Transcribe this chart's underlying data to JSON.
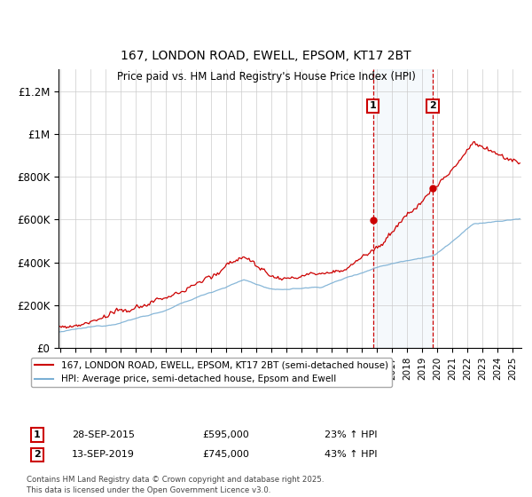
{
  "title": "167, LONDON ROAD, EWELL, EPSOM, KT17 2BT",
  "subtitle": "Price paid vs. HM Land Registry's House Price Index (HPI)",
  "legend_line1": "167, LONDON ROAD, EWELL, EPSOM, KT17 2BT (semi-detached house)",
  "legend_line2": "HPI: Average price, semi-detached house, Epsom and Ewell",
  "annotation1": {
    "label": "1",
    "date": "28-SEP-2015",
    "price": "£595,000",
    "info": "23% ↑ HPI",
    "x": 2015.75
  },
  "annotation2": {
    "label": "2",
    "date": "13-SEP-2019",
    "price": "£745,000",
    "info": "43% ↑ HPI",
    "x": 2019.71
  },
  "footnote": "Contains HM Land Registry data © Crown copyright and database right 2025.\nThis data is licensed under the Open Government Licence v3.0.",
  "ylim": [
    0,
    1300000
  ],
  "yticks": [
    0,
    200000,
    400000,
    600000,
    800000,
    1000000,
    1200000
  ],
  "ytick_labels": [
    "£0",
    "£200K",
    "£400K",
    "£600K",
    "£800K",
    "£1M",
    "£1.2M"
  ],
  "price_line_color": "#cc0000",
  "hpi_line_color": "#7aafd4",
  "grid_color": "#cccccc",
  "background_color": "#ffffff",
  "highlight_fill": "#ddeeff",
  "dashed_line_color": "#cc0000",
  "marker_color": "#cc0000"
}
